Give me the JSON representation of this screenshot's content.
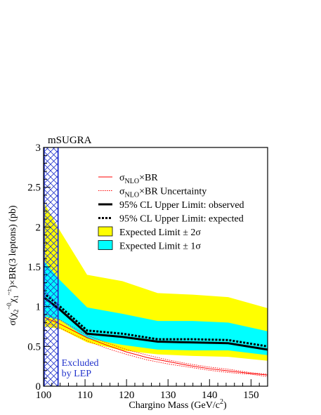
{
  "chart_data": {
    "type": "line",
    "title": "mSUGRA",
    "xlabel": "Chargino Mass (GeV/c²)",
    "ylabel": "σ(χ̃⁰₂χ̃±₁)×BR(3 leptons) (pb)",
    "xlim": [
      100,
      154
    ],
    "ylim": [
      0,
      3
    ],
    "xticks": [
      "100",
      "110",
      "120",
      "130",
      "140",
      "150"
    ],
    "yticks": [
      "0",
      "0.5",
      "1",
      "1.5",
      "2",
      "2.5",
      "3"
    ],
    "grid": false,
    "legend_position": "top-right",
    "excluded_region": {
      "x_range": [
        100,
        103.5
      ],
      "label_lines": [
        "Excluded",
        "by LEP"
      ],
      "color": "#2233cc"
    },
    "bands": [
      {
        "name": "Expected Limit ± 2σ",
        "color": "#ffff00",
        "x": [
          100,
          104,
          110.5,
          119,
          127.5,
          136,
          144.5,
          154
        ],
        "lower": [
          0.75,
          0.72,
          0.55,
          0.45,
          0.4,
          0.38,
          0.37,
          0.32
        ],
        "upper": [
          2.32,
          1.95,
          1.4,
          1.32,
          1.17,
          1.15,
          1.12,
          0.98
        ]
      },
      {
        "name": "Expected Limit ± 1σ",
        "color": "#00ffff",
        "x": [
          100,
          104,
          110.5,
          119,
          127.5,
          136,
          144.5,
          154
        ],
        "lower": [
          0.88,
          0.83,
          0.6,
          0.52,
          0.46,
          0.45,
          0.45,
          0.39
        ],
        "upper": [
          1.58,
          1.33,
          0.99,
          0.91,
          0.82,
          0.82,
          0.8,
          0.69
        ]
      }
    ],
    "series": [
      {
        "name": "95% CL Upper Limit: observed",
        "color": "#000000",
        "style": "solid-thick",
        "x": [
          100,
          104,
          110.5,
          119,
          127.5,
          136,
          144.5,
          154
        ],
        "y": [
          1.12,
          0.96,
          0.66,
          0.62,
          0.56,
          0.55,
          0.54,
          0.46
        ]
      },
      {
        "name": "95% CL Upper Limit: expected",
        "color": "#000000",
        "style": "dotted-thick",
        "x": [
          100,
          104,
          110.5,
          119,
          127.5,
          136,
          144.5,
          154
        ],
        "y": [
          1.17,
          1.0,
          0.7,
          0.66,
          0.59,
          0.59,
          0.58,
          0.5
        ]
      },
      {
        "name": "σNLO×BR",
        "color": "#ff0000",
        "style": "solid-thin",
        "x": [
          100,
          104,
          110.5,
          115,
          120,
          125,
          130,
          135,
          140,
          145,
          150,
          154
        ],
        "y": [
          0.87,
          0.78,
          0.61,
          0.52,
          0.43,
          0.36,
          0.31,
          0.26,
          0.22,
          0.19,
          0.16,
          0.14
        ]
      },
      {
        "name": "σNLO×BR Uncertainty",
        "color": "#ff0000",
        "style": "dotted-thin",
        "x": [
          100,
          104,
          110.5,
          115,
          120,
          125,
          130,
          135,
          140,
          145,
          150,
          154
        ],
        "y_upper": [
          0.92,
          0.83,
          0.64,
          0.55,
          0.46,
          0.39,
          0.33,
          0.28,
          0.24,
          0.21,
          0.17,
          0.15
        ],
        "y_lower": [
          0.81,
          0.73,
          0.57,
          0.48,
          0.4,
          0.33,
          0.28,
          0.24,
          0.2,
          0.17,
          0.15,
          0.12
        ]
      }
    ],
    "legend": [
      {
        "label": "σNLO×BR",
        "kind": "line-red"
      },
      {
        "label": "σNLO×BR Uncertainty",
        "kind": "dotted-red"
      },
      {
        "label": "95% CL Upper Limit: observed",
        "kind": "line-black"
      },
      {
        "label": "95% CL Upper Limit: expected",
        "kind": "dotted-black"
      },
      {
        "label": "Expected Limit ± 2σ",
        "kind": "box-yellow"
      },
      {
        "label": "Expected Limit ± 1σ",
        "kind": "box-cyan"
      }
    ]
  }
}
